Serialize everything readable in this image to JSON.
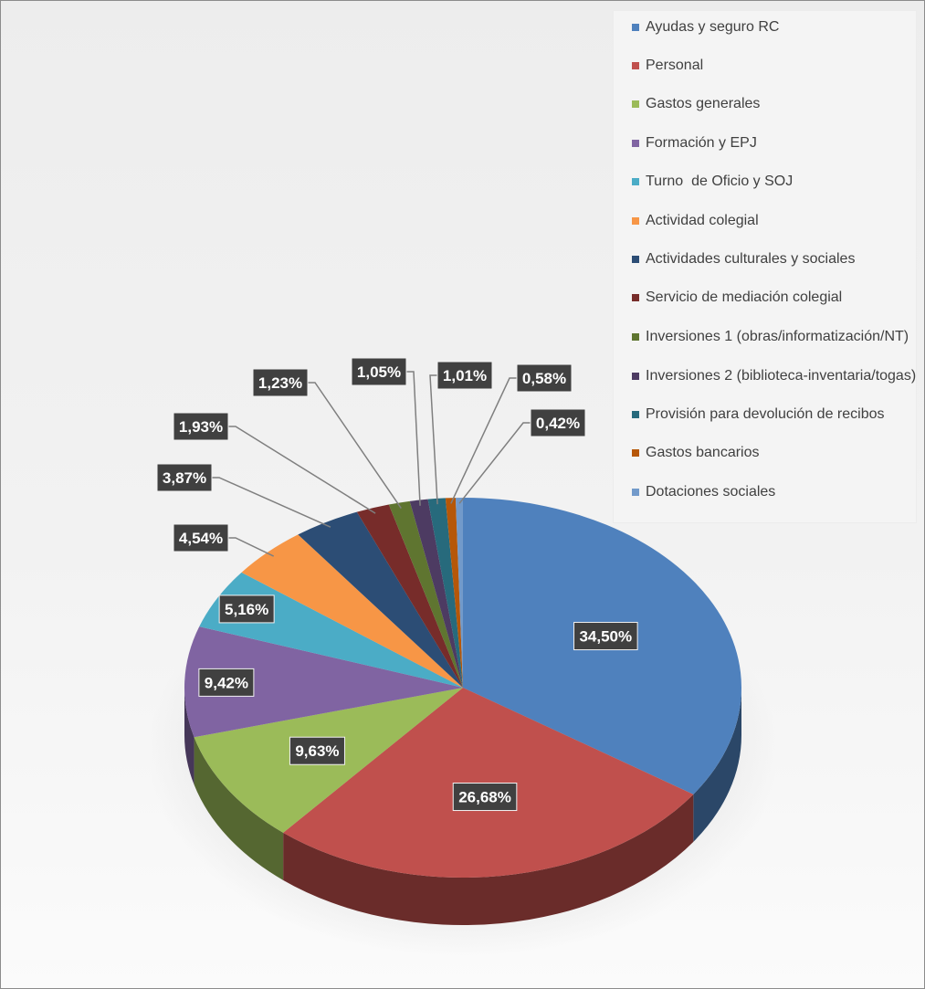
{
  "chart_data": {
    "type": "pie",
    "title": "",
    "legend_position": "top-right",
    "unit": "%",
    "categories": [
      "Ayudas y seguro RC",
      "Personal",
      "Gastos generales",
      "Formación y EPJ",
      "Turno  de Oficio y SOJ",
      "Actividad colegial",
      "Actividades culturales y sociales",
      "Servicio de mediación colegial",
      "Inversiones 1 (obras/informatización/NT)",
      "Inversiones 2 (biblioteca-inventaria/togas)",
      "Provisión para devolución de recibos",
      "Gastos bancarios",
      "Dotaciones sociales"
    ],
    "values": [
      34.5,
      26.68,
      9.63,
      9.42,
      5.16,
      4.54,
      3.87,
      1.93,
      1.23,
      1.05,
      1.01,
      0.58,
      0.42
    ],
    "data_labels": [
      "34,50%",
      "26,68%",
      "9,63%",
      "9,42%",
      "5,16%",
      "4,54%",
      "3,87%",
      "1,93%",
      "1,23%",
      "1,05%",
      "1,01%",
      "0,58%",
      "0,42%"
    ],
    "colors": [
      "#4f81bd",
      "#c0504d",
      "#9bbb59",
      "#8064a2",
      "#4bacc6",
      "#f79646",
      "#2c4d75",
      "#772c2a",
      "#5f7530",
      "#4d3b62",
      "#276a7c",
      "#b65708",
      "#729aca"
    ]
  }
}
